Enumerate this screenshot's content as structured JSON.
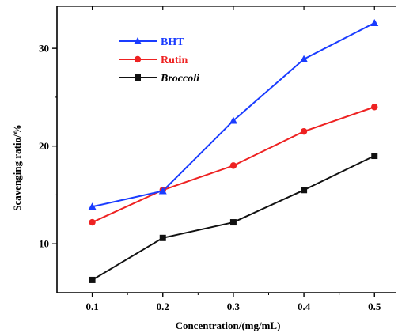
{
  "chart_data": {
    "type": "line",
    "title": "",
    "xlabel": "Concentration/(mg/mL)",
    "ylabel": "Scavenging ratio/%",
    "x": [
      0.1,
      0.2,
      0.3,
      0.4,
      0.5
    ],
    "x_tick_labels": [
      "0.1",
      "0.2",
      "0.3",
      "0.4",
      "0.5"
    ],
    "xlim": [
      0.05,
      0.53
    ],
    "ylim": [
      5.0,
      34.3
    ],
    "y_ticks": [
      10,
      20,
      30
    ],
    "y_tick_labels": [
      "10",
      "20",
      "30"
    ],
    "grid": false,
    "legend_position": "top-left",
    "series": [
      {
        "name": "BHT",
        "color": "#1a3cff",
        "marker": "triangle",
        "italic": false,
        "values": [
          13.8,
          15.4,
          22.6,
          28.9,
          32.6
        ]
      },
      {
        "name": "Rutin",
        "color": "#ee2222",
        "marker": "circle",
        "italic": false,
        "values": [
          12.2,
          15.5,
          18.0,
          21.5,
          24.0
        ]
      },
      {
        "name": "Broccoli",
        "color": "#111111",
        "marker": "square",
        "italic": true,
        "values": [
          6.3,
          10.6,
          12.2,
          15.5,
          19.0
        ]
      }
    ]
  }
}
